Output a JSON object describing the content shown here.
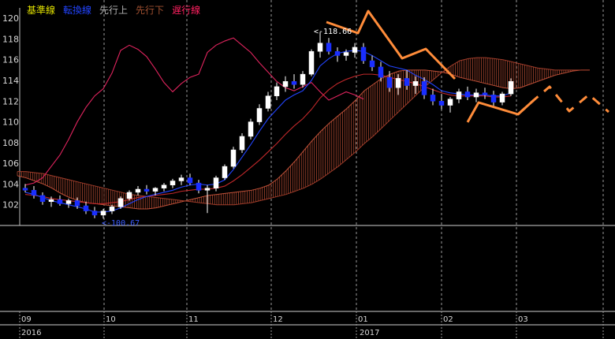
{
  "legend": [
    {
      "label": "基準線",
      "color": "#e0e000"
    },
    {
      "label": "転換線",
      "color": "#2244ff"
    },
    {
      "label": "先行上",
      "color": "#b0b0b0"
    },
    {
      "label": "先行下",
      "color": "#a05030"
    },
    {
      "label": "遅行線",
      "color": "#ff2060"
    }
  ],
  "annotations": {
    "high_label": "<-118.66",
    "low_label": "<-100.67"
  },
  "chart_data": {
    "type": "candlestick",
    "y_ticks": [
      "120",
      "118",
      "116",
      "114",
      "112",
      "110",
      "108",
      "106",
      "104",
      "102"
    ],
    "ylim": [
      100,
      121
    ],
    "month_ticks": [
      "09",
      "10",
      "11",
      "12",
      "01",
      "02",
      "03",
      ""
    ],
    "year_labels": [
      "2016",
      "2017"
    ],
    "grid": true,
    "high": 118.66,
    "low": 100.67,
    "candles": [
      [
        103.6,
        104.0,
        103.2,
        103.4
      ],
      [
        103.4,
        103.8,
        102.6,
        102.9
      ],
      [
        102.9,
        103.2,
        102.0,
        102.3
      ],
      [
        102.3,
        102.8,
        101.8,
        102.5
      ],
      [
        102.5,
        102.9,
        101.9,
        102.1
      ],
      [
        102.1,
        102.6,
        101.7,
        102.4
      ],
      [
        102.4,
        102.7,
        101.6,
        101.9
      ],
      [
        101.9,
        102.3,
        101.1,
        101.4
      ],
      [
        101.4,
        101.8,
        100.7,
        101.0
      ],
      [
        101.0,
        101.6,
        100.67,
        101.4
      ],
      [
        101.4,
        102.0,
        101.1,
        101.8
      ],
      [
        101.8,
        102.8,
        101.6,
        102.6
      ],
      [
        102.6,
        103.4,
        102.4,
        103.2
      ],
      [
        103.2,
        103.8,
        102.9,
        103.5
      ],
      [
        103.5,
        103.9,
        103.0,
        103.3
      ],
      [
        103.3,
        103.7,
        102.9,
        103.6
      ],
      [
        103.6,
        104.1,
        103.3,
        103.9
      ],
      [
        103.9,
        104.5,
        103.6,
        104.3
      ],
      [
        104.3,
        104.9,
        103.9,
        104.6
      ],
      [
        104.6,
        105.0,
        103.9,
        104.1
      ],
      [
        104.1,
        104.4,
        103.1,
        103.4
      ],
      [
        103.4,
        103.9,
        101.2,
        103.6
      ],
      [
        103.6,
        104.8,
        103.3,
        104.6
      ],
      [
        104.6,
        105.9,
        104.4,
        105.7
      ],
      [
        105.7,
        107.6,
        105.5,
        107.3
      ],
      [
        107.3,
        108.9,
        107.0,
        108.6
      ],
      [
        108.6,
        110.3,
        108.3,
        110.0
      ],
      [
        110.0,
        111.7,
        109.7,
        111.3
      ],
      [
        111.3,
        112.9,
        111.0,
        112.5
      ],
      [
        112.5,
        113.8,
        112.1,
        113.4
      ],
      [
        113.4,
        114.4,
        112.9,
        113.9
      ],
      [
        113.9,
        114.6,
        113.2,
        113.6
      ],
      [
        113.6,
        114.9,
        113.3,
        114.6
      ],
      [
        114.6,
        117.0,
        114.4,
        116.8
      ],
      [
        116.8,
        118.66,
        116.2,
        117.6
      ],
      [
        117.6,
        118.1,
        116.5,
        116.8
      ],
      [
        116.8,
        117.2,
        115.8,
        116.4
      ],
      [
        116.4,
        117.0,
        115.9,
        116.7
      ],
      [
        116.7,
        117.6,
        116.2,
        117.2
      ],
      [
        117.2,
        117.6,
        115.6,
        115.9
      ],
      [
        115.9,
        116.4,
        114.9,
        115.3
      ],
      [
        115.3,
        115.8,
        113.9,
        114.3
      ],
      [
        114.3,
        114.9,
        112.9,
        113.3
      ],
      [
        113.3,
        114.6,
        112.6,
        114.2
      ],
      [
        114.2,
        115.0,
        113.1,
        113.5
      ],
      [
        113.5,
        114.4,
        112.7,
        113.9
      ],
      [
        113.9,
        114.3,
        112.2,
        112.6
      ],
      [
        112.6,
        113.2,
        111.6,
        112.0
      ],
      [
        112.0,
        112.7,
        111.2,
        111.6
      ],
      [
        111.6,
        112.4,
        110.9,
        112.2
      ],
      [
        112.2,
        113.2,
        111.8,
        112.9
      ],
      [
        112.9,
        113.4,
        112.1,
        112.4
      ],
      [
        112.4,
        113.2,
        111.9,
        112.8
      ],
      [
        112.8,
        113.3,
        112.2,
        112.6
      ],
      [
        112.6,
        113.0,
        111.5,
        111.9
      ],
      [
        111.9,
        112.9,
        111.6,
        112.7
      ],
      [
        112.7,
        114.2,
        112.5,
        113.9
      ]
    ],
    "tenkan": [
      103.2,
      103.0,
      102.7,
      102.4,
      102.2,
      102.0,
      101.8,
      101.6,
      101.3,
      101.3,
      101.4,
      101.7,
      102.1,
      102.5,
      102.8,
      103.0,
      103.2,
      103.4,
      103.7,
      103.9,
      104.0,
      103.9,
      104.0,
      104.4,
      105.4,
      106.6,
      107.8,
      109.1,
      110.3,
      111.2,
      112.1,
      112.6,
      113.0,
      114.0,
      115.4,
      116.1,
      116.6,
      116.8,
      116.9,
      116.8,
      116.4,
      115.9,
      115.4,
      115.2,
      115.0,
      114.5,
      114.1,
      113.6,
      113.0,
      112.8,
      112.7,
      112.6,
      112.6,
      112.6,
      112.5,
      112.5,
      112.8
    ],
    "kijun": [
      103.0,
      102.9,
      102.8,
      102.6,
      102.5,
      102.4,
      102.3,
      102.2,
      102.1,
      102.1,
      102.2,
      102.3,
      102.5,
      102.7,
      102.8,
      102.9,
      103.0,
      103.1,
      103.3,
      103.4,
      103.5,
      103.5,
      103.6,
      103.8,
      104.3,
      104.9,
      105.6,
      106.3,
      107.1,
      107.9,
      108.8,
      109.6,
      110.3,
      111.2,
      112.3,
      113.1,
      113.7,
      114.1,
      114.4,
      114.6,
      114.6,
      114.5,
      114.3,
      114.1,
      113.9,
      113.7,
      113.4,
      113.1,
      112.8,
      112.6,
      112.5,
      112.5,
      112.5,
      112.5,
      112.4,
      112.4,
      112.5
    ],
    "senkou_a": [
      104.8,
      104.6,
      104.3,
      104.0,
      103.6,
      103.1,
      102.7,
      102.4,
      102.2,
      102.1,
      102.0,
      101.9,
      101.8,
      101.7,
      101.6,
      101.6,
      101.7,
      101.9,
      102.1,
      102.3,
      102.5,
      102.7,
      102.9,
      103.0,
      103.1,
      103.2,
      103.3,
      103.4,
      103.6,
      103.9,
      104.5,
      105.3,
      106.2,
      107.2,
      108.2,
      109.1,
      109.9,
      110.6,
      111.3,
      112.1,
      113.0,
      113.6,
      114.2,
      114.6,
      114.9,
      115.0,
      115.0,
      115.0,
      114.9,
      114.8,
      114.6,
      114.3,
      114.1,
      113.9,
      113.7,
      113.5,
      113.3,
      113.2,
      113.3,
      113.6,
      113.9,
      114.2,
      114.5,
      114.7,
      114.9,
      115.0,
      115.0
    ],
    "senkou_b": [
      105.2,
      105.2,
      105.1,
      105.0,
      104.8,
      104.6,
      104.4,
      104.2,
      104.0,
      103.8,
      103.6,
      103.4,
      103.2,
      103.0,
      102.9,
      102.8,
      102.7,
      102.6,
      102.5,
      102.4,
      102.3,
      102.2,
      102.1,
      102.0,
      102.0,
      102.0,
      102.1,
      102.2,
      102.4,
      102.6,
      102.8,
      103.0,
      103.3,
      103.6,
      104.0,
      104.5,
      105.1,
      105.7,
      106.4,
      107.1,
      107.9,
      108.6,
      109.4,
      110.2,
      111.0,
      111.8,
      112.6,
      113.4,
      114.1,
      114.8,
      115.4,
      115.9,
      116.1,
      116.2,
      116.2,
      116.1,
      116.0,
      115.8,
      115.6,
      115.4,
      115.2,
      115.1,
      115.0,
      115.0,
      115.0,
      115.0,
      115.0
    ],
    "chikou": [
      103.9,
      104.1,
      104.6,
      105.7,
      106.8,
      108.3,
      110.0,
      111.4,
      112.5,
      113.2,
      114.7,
      116.9,
      117.4,
      117.0,
      116.3,
      115.1,
      113.8,
      112.9,
      113.7,
      114.3,
      114.6,
      116.7,
      117.4,
      117.8,
      118.1,
      117.4,
      116.7,
      115.7,
      114.8,
      113.9,
      113.3,
      113.0,
      113.4,
      113.8,
      112.9,
      112.1,
      112.5,
      112.9,
      112.6,
      112.2
    ],
    "annotation_lines": [
      {
        "points": [
          [
            414,
            28
          ],
          [
            454,
            42
          ],
          [
            467,
            14
          ],
          [
            510,
            74
          ],
          [
            540,
            62
          ],
          [
            577,
            100
          ]
        ],
        "style": "solid"
      },
      {
        "points": [
          [
            593,
            155
          ],
          [
            607,
            130
          ],
          [
            657,
            145
          ],
          [
            677,
            127
          ]
        ],
        "style": "solid"
      },
      {
        "points": [
          [
            657,
            145
          ],
          [
            677,
            127
          ],
          [
            697,
            110
          ],
          [
            722,
            141
          ],
          [
            747,
            120
          ],
          [
            772,
            142
          ]
        ],
        "style": "dashed"
      }
    ]
  }
}
